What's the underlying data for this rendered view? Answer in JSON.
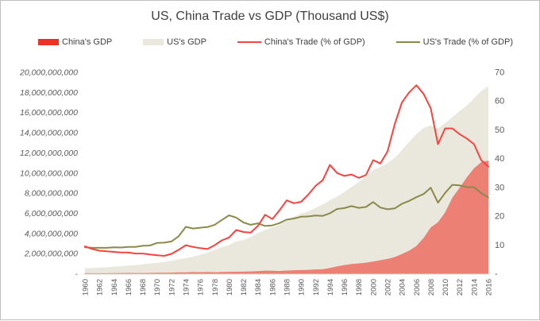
{
  "title": "US, China Trade vs GDP (Thousand US$)",
  "legend": {
    "items": [
      {
        "label": "China's GDP",
        "type": "area",
        "color": "#ee3124"
      },
      {
        "label": "US's GDP",
        "type": "area",
        "color": "#eae8dc"
      },
      {
        "label": "China's Trade (% of GDP)",
        "type": "line",
        "color": "#f8433f"
      },
      {
        "label": "US's Trade (% of GDP)",
        "type": "line",
        "color": "#8a8a4d"
      }
    ]
  },
  "chart_data": {
    "type": "combo-area-line",
    "title": "US, China Trade vs GDP (Thousand US$)",
    "grid": false,
    "legend_position": "top",
    "x_label": "",
    "x": [
      1960,
      1961,
      1962,
      1963,
      1964,
      1965,
      1966,
      1967,
      1968,
      1969,
      1970,
      1971,
      1972,
      1973,
      1974,
      1975,
      1976,
      1977,
      1978,
      1979,
      1980,
      1981,
      1982,
      1983,
      1984,
      1985,
      1986,
      1987,
      1988,
      1989,
      1990,
      1991,
      1992,
      1993,
      1994,
      1995,
      1996,
      1997,
      1998,
      1999,
      2000,
      2001,
      2002,
      2003,
      2004,
      2005,
      2006,
      2007,
      2008,
      2009,
      2010,
      2011,
      2012,
      2013,
      2014,
      2015,
      2016
    ],
    "x_tick_labels": [
      "1960",
      "1962",
      "1964",
      "1966",
      "1968",
      "1970",
      "1972",
      "1974",
      "1976",
      "1978",
      "1980",
      "1982",
      "1984",
      "1986",
      "1988",
      "1990",
      "1992",
      "1994",
      "1996",
      "1998",
      "2000",
      "2002",
      "2004",
      "2006",
      "2008",
      "2010",
      "2012",
      "2014",
      "2016"
    ],
    "left_axis": {
      "unit": "Thousand US$",
      "min": 0,
      "max": 20000000000,
      "tick_step": 2000000000,
      "tick_labels": [
        "20,000,000,000",
        "18,000,000,000",
        "16,000,000,000",
        "14,000,000,000",
        "12,000,000,000",
        "10,000,000,000",
        "8,000,000,000",
        "6,000,000,000",
        "4,000,000,000",
        "2,000,000,000",
        "-"
      ]
    },
    "right_axis": {
      "unit": "% of GDP",
      "min": 0,
      "max": 70,
      "tick_step": 10,
      "tick_labels": [
        "70",
        "60",
        "50",
        "40",
        "30",
        "20",
        "10",
        "-"
      ]
    },
    "series": [
      {
        "name": "China's GDP",
        "type": "area",
        "axis": "left",
        "color": "#ec8074",
        "values": [
          59700000,
          50100000,
          47200000,
          50700000,
          59700000,
          70400000,
          76700000,
          72900000,
          70800000,
          79700000,
          92600000,
          99800000,
          113700000,
          138500000,
          144200000,
          163400000,
          153900000,
          174900000,
          149500000,
          178300000,
          191100000,
          195900000,
          205100000,
          230700000,
          260000000,
          309500000,
          300800000,
          273000000,
          312400000,
          347800000,
          360900000,
          383400000,
          426900000,
          444700000,
          564300000,
          734500000,
          863700000,
          961600000,
          1029000000,
          1094000000,
          1211300000,
          1339400000,
          1470600000,
          1660300000,
          1955300000,
          2286000000,
          2752100000,
          3550300000,
          4594300000,
          5101700000,
          6087200000,
          7551500000,
          8532200000,
          9570400000,
          10475700000,
          11061600000,
          11233300000
        ]
      },
      {
        "name": "US's GDP",
        "type": "area",
        "axis": "left",
        "color": "#eae8dc",
        "values": [
          543300000,
          563300000,
          605100000,
          638600000,
          685800000,
          743700000,
          815000000,
          861700000,
          942500000,
          1019900000,
          1075900000,
          1167800000,
          1282400000,
          1428500000,
          1548800000,
          1688900000,
          1877600000,
          2086000000,
          2356600000,
          2632100000,
          2862500000,
          3211000000,
          3345000000,
          3638100000,
          4040700000,
          4346700000,
          4590200000,
          4870200000,
          5252600000,
          5657700000,
          5979600000,
          6174000000,
          6539300000,
          6878700000,
          7308800000,
          7664100000,
          8100200000,
          8608500000,
          9089200000,
          9660600000,
          10284800000,
          10621800000,
          10977500000,
          11510700000,
          12274900000,
          13093700000,
          13855900000,
          14477600000,
          14718600000,
          14418700000,
          14964400000,
          15517900000,
          16155300000,
          16691500000,
          17427600000,
          18120700000,
          18624500000
        ]
      },
      {
        "name": "China's Trade (% of GDP)",
        "type": "line",
        "axis": "right",
        "color": "#f8433f",
        "values": [
          9.5,
          8.6,
          8.0,
          7.8,
          7.6,
          7.4,
          7.4,
          7.0,
          7.0,
          6.7,
          6.4,
          6.2,
          6.9,
          8.3,
          9.9,
          9.3,
          8.9,
          8.6,
          9.9,
          11.6,
          12.6,
          15.2,
          14.5,
          14.3,
          16.6,
          20.5,
          19.0,
          22.0,
          25.5,
          24.5,
          25.0,
          27.5,
          30.5,
          32.5,
          37.8,
          35.0,
          34.0,
          34.5,
          33.3,
          34.3,
          39.5,
          38.3,
          42.5,
          52.0,
          59.5,
          63.0,
          65.5,
          62.5,
          57.5,
          45.0,
          50.5,
          50.5,
          48.5,
          47.0,
          45.0,
          39.5,
          37.2
        ]
      },
      {
        "name": "US's Trade (% of GDP)",
        "type": "line",
        "axis": "right",
        "color": "#8a8a4d",
        "values": [
          9.2,
          9.0,
          9.0,
          9.0,
          9.2,
          9.1,
          9.3,
          9.3,
          9.7,
          9.8,
          10.7,
          10.8,
          11.2,
          13.0,
          16.3,
          15.7,
          16.0,
          16.2,
          17.0,
          18.7,
          20.3,
          19.5,
          17.8,
          17.0,
          17.5,
          16.6,
          16.8,
          17.6,
          18.8,
          19.2,
          19.8,
          19.9,
          20.2,
          20.1,
          21.0,
          22.5,
          22.8,
          23.5,
          22.9,
          23.2,
          24.9,
          23.0,
          22.4,
          22.7,
          24.3,
          25.3,
          26.6,
          27.7,
          29.9,
          24.7,
          28.1,
          30.9,
          30.7,
          30.1,
          30.1,
          28.0,
          26.5
        ]
      }
    ]
  },
  "colors": {
    "title_text": "#3f3f3f",
    "legend_text": "#404040",
    "axis_text": "#595959",
    "baseline": "#d9d9d9",
    "background": "#ffffff",
    "border": "#bfbfbf"
  }
}
